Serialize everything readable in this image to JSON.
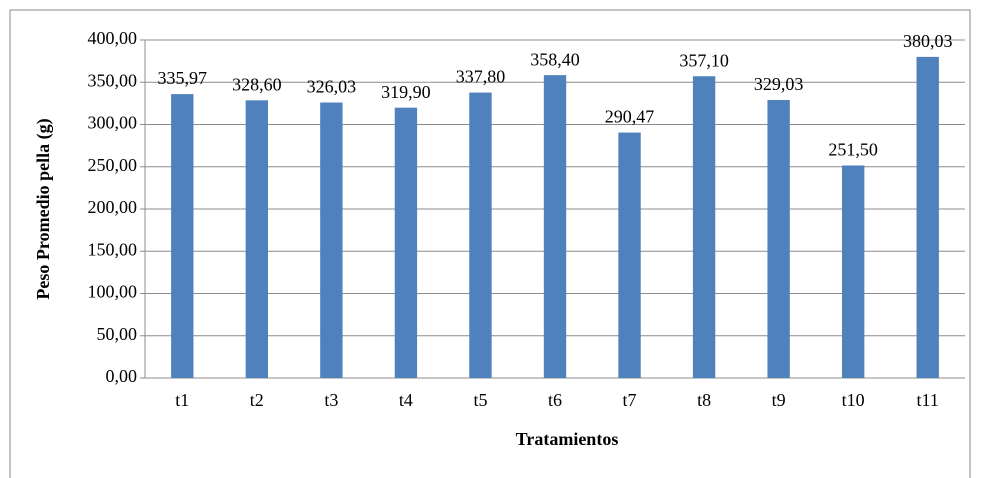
{
  "chart_data": {
    "type": "bar",
    "xlabel": "Tratamientos",
    "ylabel": "Peso Promedio pella (g)",
    "categories": [
      "t1",
      "t2",
      "t3",
      "t4",
      "t5",
      "t6",
      "t7",
      "t8",
      "t9",
      "t10",
      "t11"
    ],
    "values": [
      335.97,
      328.6,
      326.03,
      319.9,
      337.8,
      358.4,
      290.47,
      357.1,
      329.03,
      251.5,
      380.03
    ],
    "value_labels": [
      "335,97",
      "328,60",
      "326,03",
      "319,90",
      "337,80",
      "358,40",
      "290,47",
      "357,10",
      "329,03",
      "251,50",
      "380,03"
    ],
    "color": "#4f81bd",
    "ylim": [
      0,
      400
    ],
    "yticks": [
      {
        "value": 0,
        "label": "0,00"
      },
      {
        "value": 50,
        "label": "50,00"
      },
      {
        "value": 100,
        "label": "100,00"
      },
      {
        "value": 150,
        "label": "150,00"
      },
      {
        "value": 200,
        "label": "200,00"
      },
      {
        "value": 250,
        "label": "250,00"
      },
      {
        "value": 300,
        "label": "300,00"
      },
      {
        "value": 350,
        "label": "350,00"
      },
      {
        "value": 400,
        "label": "400,00"
      }
    ],
    "grid": true
  }
}
